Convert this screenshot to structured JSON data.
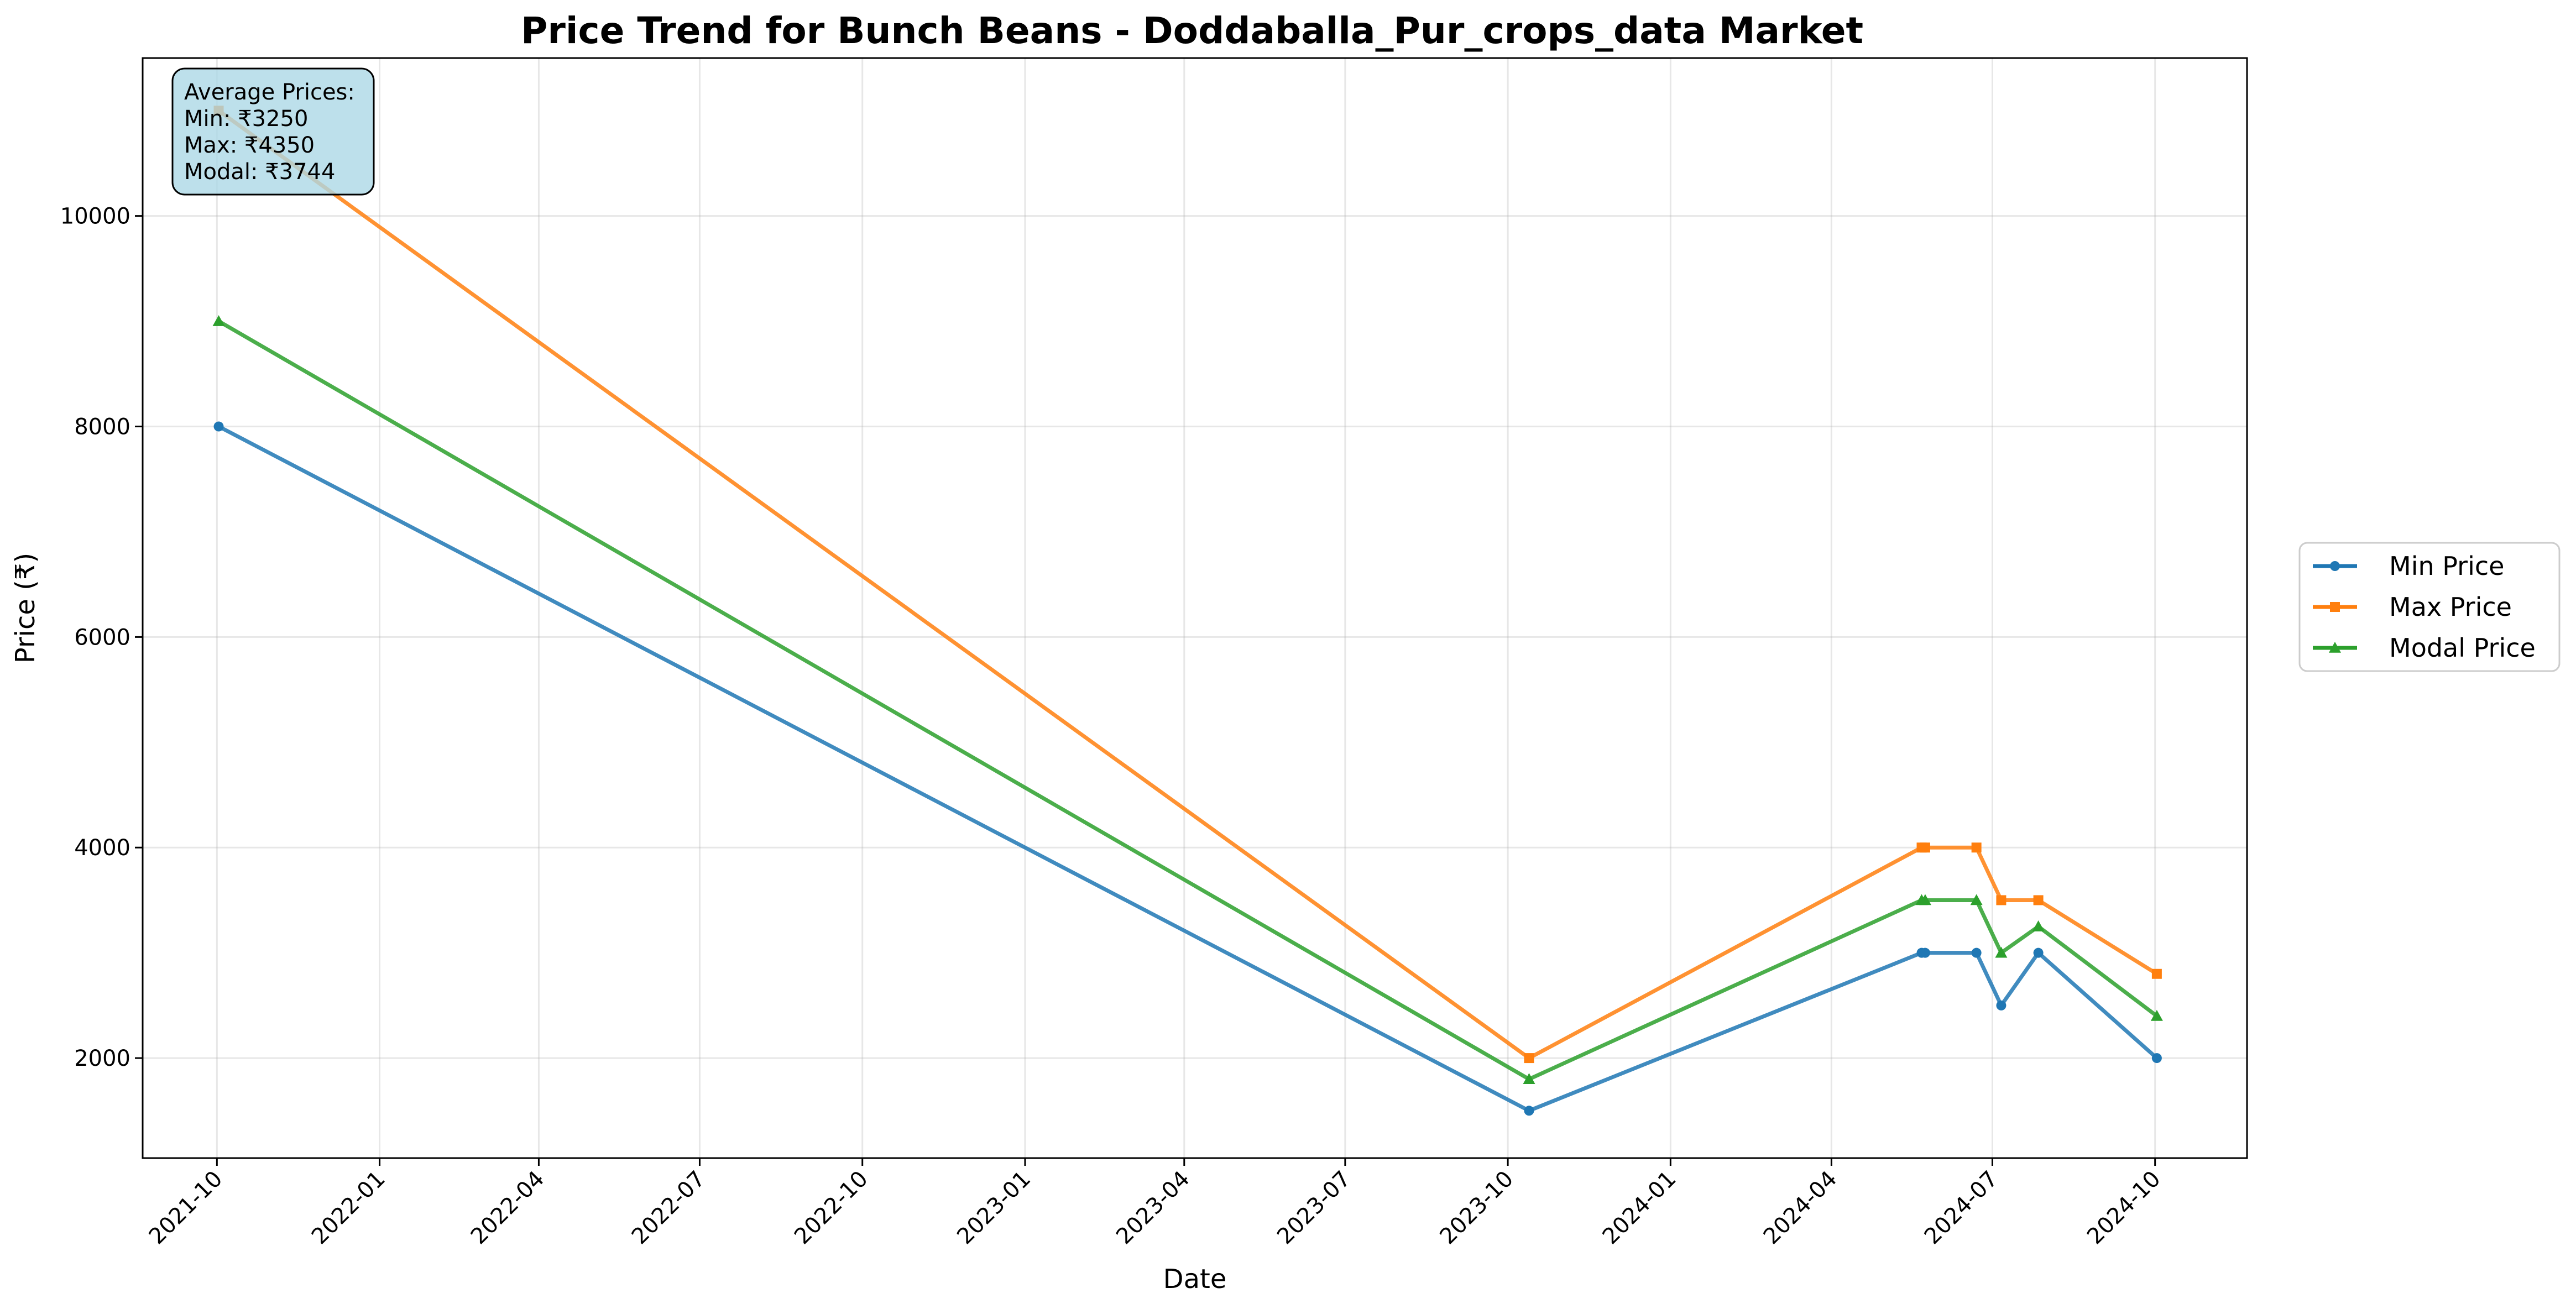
{
  "chart_data": {
    "type": "line",
    "title": "Price Trend for Bunch Beans - Doddaballa_Pur_crops_data Market",
    "xlabel": "Date",
    "ylabel": "Price (₹)",
    "x_ticks": [
      "2021-10",
      "2022-01",
      "2022-04",
      "2022-07",
      "2022-10",
      "2023-01",
      "2023-04",
      "2023-07",
      "2023-10",
      "2024-01",
      "2024-04",
      "2024-07",
      "2024-10"
    ],
    "y_ticks": [
      2000,
      4000,
      6000,
      8000,
      10000
    ],
    "xlim": [
      "2021-08-20",
      "2024-11-22"
    ],
    "ylim": [
      1050,
      11500
    ],
    "grid": true,
    "legend_position": "right",
    "x": [
      "2021-10-02",
      "2023-10-13",
      "2024-05-22",
      "2024-05-24",
      "2024-06-22",
      "2024-07-06",
      "2024-07-27",
      "2024-10-02"
    ],
    "series": [
      {
        "name": "Min Price",
        "marker": "circle",
        "color": "#1f77b4",
        "values": [
          8000,
          1500,
          3000,
          3000,
          3000,
          2500,
          3000,
          2000
        ]
      },
      {
        "name": "Max Price",
        "marker": "square",
        "color": "#ff7f0e",
        "values": [
          11000,
          2000,
          4000,
          4000,
          4000,
          3500,
          3500,
          2800
        ]
      },
      {
        "name": "Modal Price",
        "marker": "triangle",
        "color": "#2ca02c",
        "values": [
          9000,
          1800,
          3500,
          3500,
          3500,
          3000,
          3250,
          2400
        ]
      }
    ],
    "stats_box": {
      "heading": "Average Prices:",
      "lines": [
        "Min: ₹3250",
        "Max: ₹4350",
        "Modal: ₹3744"
      ],
      "background": "#add8e6"
    }
  }
}
